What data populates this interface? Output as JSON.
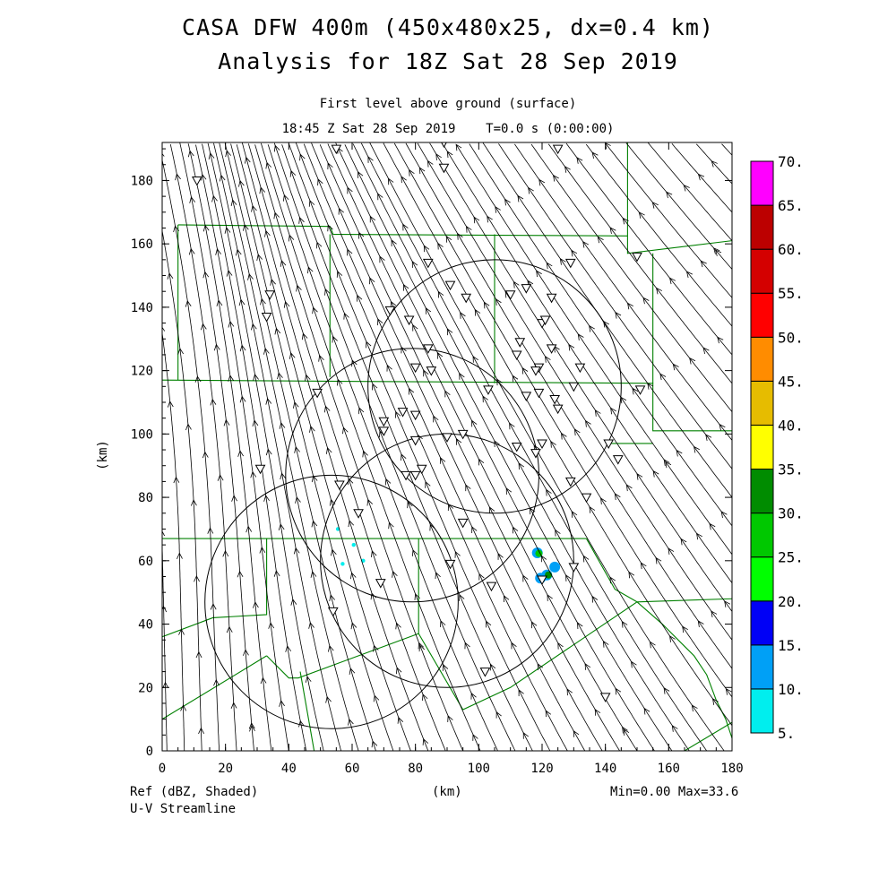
{
  "chart_data": {
    "type": "heatmap",
    "title": "CASA DFW 400m (450x480x25, dx=0.4 km)",
    "subtitle": "Analysis for 18Z Sat 28 Sep 2019",
    "level_label": "First level above ground (surface)",
    "time_label": "18:45 Z Sat 28 Sep 2019    T=0.0 s (0:00:00)",
    "xlabel": "(km)",
    "ylabel": "(km)",
    "xlim": [
      0,
      180
    ],
    "ylim": [
      0,
      192
    ],
    "xticks": [
      "0",
      "20",
      "40",
      "60",
      "80",
      "100",
      "120",
      "140",
      "160",
      "180"
    ],
    "yticks": [
      "0",
      "20",
      "40",
      "60",
      "80",
      "100",
      "120",
      "140",
      "160",
      "180"
    ],
    "field_label": "Ref (dBZ, Shaded)",
    "overlay_label": "U-V Streamline",
    "stats_label": "Min=0.00 Max=33.6",
    "colorbar": {
      "labels": [
        "5.",
        "10.",
        "15.",
        "20.",
        "25.",
        "30.",
        "35.",
        "40.",
        "45.",
        "50.",
        "55.",
        "60.",
        "65.",
        "70."
      ],
      "colors": [
        "#00eeee",
        "#00a0f6",
        "#0000f6",
        "#00ff00",
        "#00c800",
        "#008c00",
        "#ffff00",
        "#e6bc00",
        "#ff8c00",
        "#ff0000",
        "#d40000",
        "#bc0000",
        "#ff00ff"
      ]
    },
    "radar_rings_km": [
      {
        "cx": 53.5,
        "cy": 47,
        "r": 40
      },
      {
        "cx": 90,
        "cy": 60,
        "r": 40
      },
      {
        "cx": 79,
        "cy": 87,
        "r": 40
      },
      {
        "cx": 105,
        "cy": 115,
        "r": 40
      }
    ],
    "echoes": [
      {
        "x": 55.5,
        "y": 70,
        "dbz": 7
      },
      {
        "x": 60.5,
        "y": 65,
        "dbz": 7
      },
      {
        "x": 57,
        "y": 59,
        "dbz": 7
      },
      {
        "x": 63.5,
        "y": 60,
        "dbz": 7
      },
      {
        "x": 118.5,
        "y": 62.5,
        "dbz": 12
      },
      {
        "x": 119,
        "y": 62.3,
        "dbz": 27
      },
      {
        "x": 121.5,
        "y": 55.5,
        "dbz": 12
      },
      {
        "x": 122,
        "y": 55.5,
        "dbz": 33.6
      },
      {
        "x": 119.5,
        "y": 54.5,
        "dbz": 12
      },
      {
        "x": 124,
        "y": 58,
        "dbz": 10
      }
    ],
    "stations_km": [
      [
        11,
        180
      ],
      [
        55,
        190
      ],
      [
        89,
        184
      ],
      [
        89,
        192
      ],
      [
        125,
        190
      ],
      [
        150,
        156
      ],
      [
        34,
        144
      ],
      [
        33,
        137
      ],
      [
        84,
        154
      ],
      [
        91,
        147
      ],
      [
        96,
        143
      ],
      [
        110,
        144
      ],
      [
        115,
        146
      ],
      [
        123,
        143
      ],
      [
        129,
        154
      ],
      [
        72,
        139
      ],
      [
        78,
        136
      ],
      [
        84,
        127
      ],
      [
        80,
        121
      ],
      [
        85,
        120
      ],
      [
        113,
        129
      ],
      [
        123,
        127
      ],
      [
        120,
        135
      ],
      [
        121,
        136
      ],
      [
        119,
        121
      ],
      [
        118,
        120
      ],
      [
        112,
        125
      ],
      [
        132,
        121
      ],
      [
        130,
        115
      ],
      [
        151,
        114
      ],
      [
        103,
        114
      ],
      [
        115,
        112
      ],
      [
        119,
        113
      ],
      [
        124,
        111
      ],
      [
        125,
        108
      ],
      [
        49,
        113
      ],
      [
        70,
        104
      ],
      [
        76,
        107
      ],
      [
        80,
        106
      ],
      [
        70,
        101
      ],
      [
        80,
        98
      ],
      [
        90,
        99
      ],
      [
        95,
        100
      ],
      [
        112,
        96
      ],
      [
        120,
        97
      ],
      [
        141,
        97
      ],
      [
        118,
        94
      ],
      [
        144,
        92
      ],
      [
        31,
        89
      ],
      [
        77,
        87
      ],
      [
        80,
        87
      ],
      [
        82,
        89
      ],
      [
        129,
        85
      ],
      [
        134,
        80
      ],
      [
        56,
        84
      ],
      [
        62,
        75
      ],
      [
        95,
        72
      ],
      [
        91,
        59
      ],
      [
        130,
        58
      ],
      [
        104,
        52
      ],
      [
        69,
        53
      ],
      [
        54,
        44
      ],
      [
        102,
        25
      ],
      [
        140,
        17
      ],
      [
        120,
        54
      ]
    ],
    "boundaries_km": [
      [
        [
          0,
          117
        ],
        [
          155,
          116
        ],
        [
          155,
          101
        ],
        [
          180,
          101
        ]
      ],
      [
        [
          5,
          166
        ],
        [
          53,
          165.5
        ],
        [
          54,
          163
        ],
        [
          147,
          162.5
        ]
      ],
      [
        [
          5,
          166
        ],
        [
          5,
          117
        ]
      ],
      [
        [
          53,
          163
        ],
        [
          53,
          118
        ]
      ],
      [
        [
          105,
          163
        ],
        [
          105,
          116
        ]
      ],
      [
        [
          147,
          192
        ],
        [
          147,
          157
        ],
        [
          180,
          161
        ]
      ],
      [
        [
          155,
          157
        ],
        [
          155,
          116
        ]
      ],
      [
        [
          141,
          97
        ],
        [
          155,
          97
        ]
      ],
      [
        [
          0,
          67
        ],
        [
          134,
          67
        ]
      ],
      [
        [
          33,
          67
        ],
        [
          33,
          43
        ],
        [
          16,
          42
        ],
        [
          0,
          36
        ]
      ],
      [
        [
          33,
          30
        ],
        [
          0,
          10
        ]
      ],
      [
        [
          33,
          30
        ],
        [
          40,
          23
        ],
        [
          43,
          23
        ],
        [
          81,
          37
        ],
        [
          81,
          67
        ]
      ],
      [
        [
          43.6,
          25
        ],
        [
          48,
          0
        ]
      ],
      [
        [
          81,
          37
        ],
        [
          95,
          13
        ],
        [
          110,
          20
        ],
        [
          150,
          47
        ],
        [
          180,
          48
        ]
      ],
      [
        [
          134,
          67
        ],
        [
          143,
          51
        ],
        [
          150,
          47
        ]
      ],
      [
        [
          150,
          47
        ],
        [
          158,
          40
        ],
        [
          168,
          30
        ],
        [
          172,
          24
        ],
        [
          175,
          16
        ],
        [
          178,
          10
        ],
        [
          180,
          4
        ]
      ],
      [
        [
          180,
          9
        ],
        [
          165,
          0
        ]
      ]
    ]
  }
}
